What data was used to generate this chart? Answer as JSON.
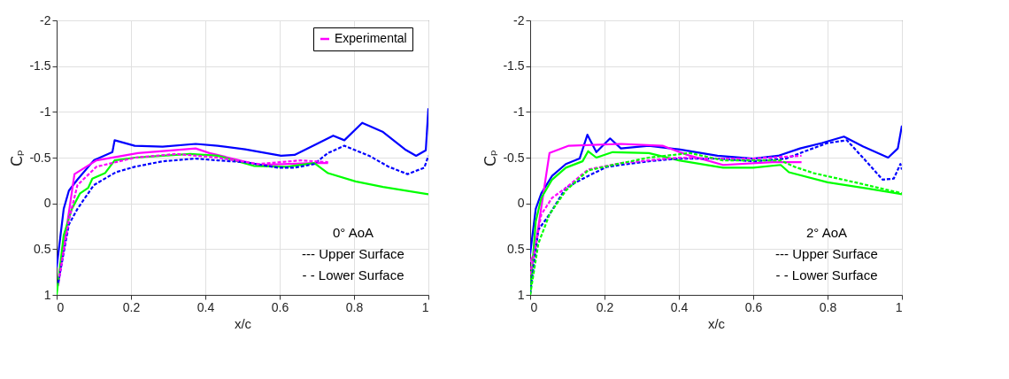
{
  "chart_data": [
    {
      "type": "line",
      "xlabel": "x/c",
      "ylabel": "Cₚ",
      "xlim": [
        0,
        1
      ],
      "xticks": [
        0,
        0.2,
        0.4,
        0.6,
        0.8,
        1
      ],
      "ylim": [
        1,
        -2
      ],
      "yticks": [
        -2,
        -1.5,
        -1,
        -0.5,
        0,
        0.5,
        1
      ],
      "grid": true,
      "legend": "top right",
      "annotations": [
        "0° AoA",
        "--- Upper Surface",
        "- - Lower Surface"
      ],
      "series": [
        {
          "color": "#0000ff",
          "line_style": "solid",
          "x": [
            0,
            0.019,
            0.033,
            0.056,
            0.1,
            0.15,
            0.156,
            0.21,
            0.285,
            0.374,
            0.433,
            0.507,
            0.604,
            0.64,
            0.7,
            0.744,
            0.774,
            0.822,
            0.878,
            0.937,
            0.967,
            0.993,
            1.0
          ],
          "values": [
            0.7,
            0.06,
            -0.14,
            -0.26,
            -0.47,
            -0.56,
            -0.69,
            -0.63,
            -0.62,
            -0.65,
            -0.63,
            -0.59,
            -0.52,
            -0.53,
            -0.65,
            -0.74,
            -0.69,
            -0.88,
            -0.78,
            -0.59,
            -0.52,
            -0.58,
            -1.04
          ]
        },
        {
          "color": "#0000ff",
          "line_style": "dashed",
          "x": [
            0.004,
            0.033,
            0.056,
            0.1,
            0.159,
            0.21,
            0.285,
            0.374,
            0.433,
            0.507,
            0.596,
            0.64,
            0.693,
            0.73,
            0.774,
            0.841,
            0.893,
            0.944,
            0.989,
            1.0
          ],
          "values": [
            0.87,
            0.23,
            0.06,
            -0.2,
            -0.34,
            -0.4,
            -0.46,
            -0.49,
            -0.47,
            -0.45,
            -0.39,
            -0.39,
            -0.43,
            -0.55,
            -0.63,
            -0.52,
            -0.4,
            -0.32,
            -0.39,
            -0.52
          ]
        },
        {
          "name": "Experimental",
          "color": "#ff00ff",
          "line_style": "solid",
          "x": [
            0.004,
            0.048,
            0.107,
            0.219,
            0.374,
            0.411,
            0.544,
            0.693,
            0.73
          ],
          "values": [
            0.9,
            -0.32,
            -0.47,
            -0.55,
            -0.6,
            -0.55,
            -0.42,
            -0.44,
            -0.44
          ]
        },
        {
          "color": "#ff00ff",
          "line_style": "dashed",
          "x": [
            0.007,
            0.033,
            0.056,
            0.107,
            0.21,
            0.322,
            0.433,
            0.544,
            0.656,
            0.73
          ],
          "values": [
            0.8,
            0.18,
            -0.2,
            -0.4,
            -0.5,
            -0.54,
            -0.5,
            -0.43,
            -0.47,
            -0.45
          ]
        },
        {
          "color": "#00ff00",
          "line_style": "solid",
          "x": [
            0,
            0.019,
            0.041,
            0.063,
            0.085,
            0.096,
            0.13,
            0.156,
            0.21,
            0.285,
            0.359,
            0.433,
            0.53,
            0.619,
            0.693,
            0.73,
            0.804,
            0.878,
            1.0
          ],
          "values": [
            1.0,
            0.35,
            0.06,
            -0.11,
            -0.17,
            -0.27,
            -0.33,
            -0.47,
            -0.5,
            -0.52,
            -0.54,
            -0.52,
            -0.41,
            -0.4,
            -0.44,
            -0.33,
            -0.24,
            -0.18,
            -0.1
          ]
        }
      ]
    },
    {
      "type": "line",
      "xlabel": "x/c",
      "ylabel": "Cₚ",
      "xlim": [
        0,
        1
      ],
      "xticks": [
        0,
        0.2,
        0.4,
        0.6,
        0.8,
        1
      ],
      "ylim": [
        1,
        -2
      ],
      "yticks": [
        -2,
        -1.5,
        -1,
        -0.5,
        0,
        0.5,
        1
      ],
      "grid": true,
      "legend": "top right",
      "annotations": [
        "2° AoA",
        "--- Upper Surface",
        "- - Lower Surface"
      ],
      "series": [
        {
          "color": "#0000ff",
          "line_style": "solid",
          "x": [
            0,
            0.015,
            0.03,
            0.059,
            0.096,
            0.133,
            0.154,
            0.178,
            0.215,
            0.244,
            0.319,
            0.4,
            0.504,
            0.6,
            0.667,
            0.726,
            0.785,
            0.844,
            0.896,
            0.963,
            0.989,
            1.0
          ],
          "values": [
            0.55,
            0.06,
            -0.11,
            -0.3,
            -0.43,
            -0.49,
            -0.75,
            -0.56,
            -0.71,
            -0.6,
            -0.63,
            -0.59,
            -0.52,
            -0.49,
            -0.52,
            -0.6,
            -0.66,
            -0.73,
            -0.62,
            -0.5,
            -0.6,
            -0.85
          ]
        },
        {
          "color": "#0000ff",
          "line_style": "dashed",
          "x": [
            0,
            0.022,
            0.052,
            0.096,
            0.156,
            0.207,
            0.319,
            0.4,
            0.504,
            0.6,
            0.689,
            0.733,
            0.8,
            0.852,
            0.904,
            0.948,
            0.978,
            0.996,
            1.0
          ],
          "values": [
            0.99,
            0.29,
            0.12,
            -0.17,
            -0.3,
            -0.4,
            -0.46,
            -0.49,
            -0.49,
            -0.46,
            -0.49,
            -0.56,
            -0.66,
            -0.69,
            -0.46,
            -0.26,
            -0.27,
            -0.43,
            -0.37
          ]
        },
        {
          "name": "Experimental",
          "color": "#ff00ff",
          "line_style": "solid",
          "x": [
            0,
            0.011,
            0.052,
            0.104,
            0.244,
            0.356,
            0.422,
            0.519,
            0.652,
            0.73
          ],
          "values": [
            0.64,
            0.55,
            -0.55,
            -0.63,
            -0.65,
            -0.63,
            -0.53,
            -0.42,
            -0.45,
            -0.45
          ]
        },
        {
          "color": "#ff00ff",
          "line_style": "dashed",
          "x": [
            0,
            0.03,
            0.059,
            0.096,
            0.156,
            0.244,
            0.319,
            0.4,
            0.504,
            0.6,
            0.73
          ],
          "values": [
            0.78,
            0.12,
            -0.06,
            -0.17,
            -0.37,
            -0.44,
            -0.47,
            -0.5,
            -0.49,
            -0.49,
            -0.52
          ]
        },
        {
          "color": "#00ff00",
          "line_style": "solid",
          "x": [
            0,
            0.015,
            0.03,
            0.059,
            0.096,
            0.141,
            0.156,
            0.178,
            0.222,
            0.319,
            0.4,
            0.519,
            0.6,
            0.674,
            0.696,
            0.8,
            0.911,
            1.0
          ],
          "values": [
            1.0,
            0.2,
            -0.06,
            -0.26,
            -0.39,
            -0.46,
            -0.57,
            -0.5,
            -0.56,
            -0.55,
            -0.47,
            -0.39,
            -0.39,
            -0.42,
            -0.34,
            -0.23,
            -0.16,
            -0.1
          ]
        },
        {
          "color": "#00ff00",
          "line_style": "dashed",
          "x": [
            0,
            0.022,
            0.052,
            0.096,
            0.156,
            0.222,
            0.319,
            0.43,
            0.519,
            0.6,
            0.674,
            0.711,
            0.763,
            0.874,
            1.0
          ],
          "values": [
            1.0,
            0.44,
            0.12,
            -0.14,
            -0.36,
            -0.42,
            -0.5,
            -0.55,
            -0.47,
            -0.47,
            -0.47,
            -0.4,
            -0.33,
            -0.23,
            -0.11
          ]
        }
      ]
    }
  ]
}
